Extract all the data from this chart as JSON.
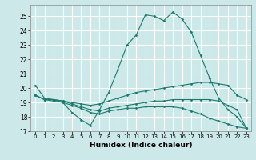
{
  "xlabel": "Humidex (Indice chaleur)",
  "xlim": [
    -0.5,
    23.5
  ],
  "ylim": [
    17,
    25.8
  ],
  "yticks": [
    17,
    18,
    19,
    20,
    21,
    22,
    23,
    24,
    25
  ],
  "xticks": [
    0,
    1,
    2,
    3,
    4,
    5,
    6,
    7,
    8,
    9,
    10,
    11,
    12,
    13,
    14,
    15,
    16,
    17,
    18,
    19,
    20,
    21,
    22,
    23
  ],
  "bg_color": "#cce8e8",
  "line_color": "#1a7a6e",
  "grid_color": "#ffffff",
  "lines": [
    {
      "x": [
        0,
        1,
        2,
        3,
        4,
        5,
        6,
        7,
        8,
        9,
        10,
        11,
        12,
        13,
        14,
        15,
        16,
        17,
        18,
        19,
        20,
        21,
        22,
        23
      ],
      "y": [
        20.2,
        19.3,
        19.2,
        19.0,
        18.3,
        17.8,
        17.4,
        18.5,
        19.7,
        21.3,
        23.0,
        23.7,
        25.1,
        25.0,
        24.7,
        25.3,
        24.8,
        23.9,
        22.3,
        20.7,
        19.3,
        18.5,
        18.0,
        17.2
      ]
    },
    {
      "x": [
        0,
        1,
        2,
        3,
        4,
        5,
        6,
        7,
        8,
        9,
        10,
        11,
        12,
        13,
        14,
        15,
        16,
        17,
        18,
        19,
        20,
        21,
        22,
        23
      ],
      "y": [
        19.5,
        19.2,
        19.2,
        19.1,
        19.0,
        18.9,
        18.8,
        18.9,
        19.1,
        19.3,
        19.5,
        19.7,
        19.8,
        19.9,
        20.0,
        20.1,
        20.2,
        20.3,
        20.4,
        20.4,
        20.3,
        20.2,
        19.5,
        19.2
      ]
    },
    {
      "x": [
        0,
        1,
        2,
        3,
        4,
        5,
        6,
        7,
        8,
        9,
        10,
        11,
        12,
        13,
        14,
        15,
        16,
        17,
        18,
        19,
        20,
        21,
        22,
        23
      ],
      "y": [
        19.5,
        19.2,
        19.2,
        19.1,
        18.9,
        18.7,
        18.5,
        18.4,
        18.6,
        18.7,
        18.8,
        18.9,
        19.0,
        19.1,
        19.1,
        19.2,
        19.2,
        19.2,
        19.2,
        19.2,
        19.1,
        18.8,
        18.5,
        17.2
      ]
    },
    {
      "x": [
        0,
        1,
        2,
        3,
        4,
        5,
        6,
        7,
        8,
        9,
        10,
        11,
        12,
        13,
        14,
        15,
        16,
        17,
        18,
        19,
        20,
        21,
        22,
        23
      ],
      "y": [
        19.5,
        19.2,
        19.1,
        19.0,
        18.8,
        18.6,
        18.3,
        18.2,
        18.4,
        18.5,
        18.6,
        18.6,
        18.7,
        18.7,
        18.7,
        18.7,
        18.6,
        18.4,
        18.2,
        17.9,
        17.7,
        17.5,
        17.3,
        17.2
      ]
    }
  ]
}
